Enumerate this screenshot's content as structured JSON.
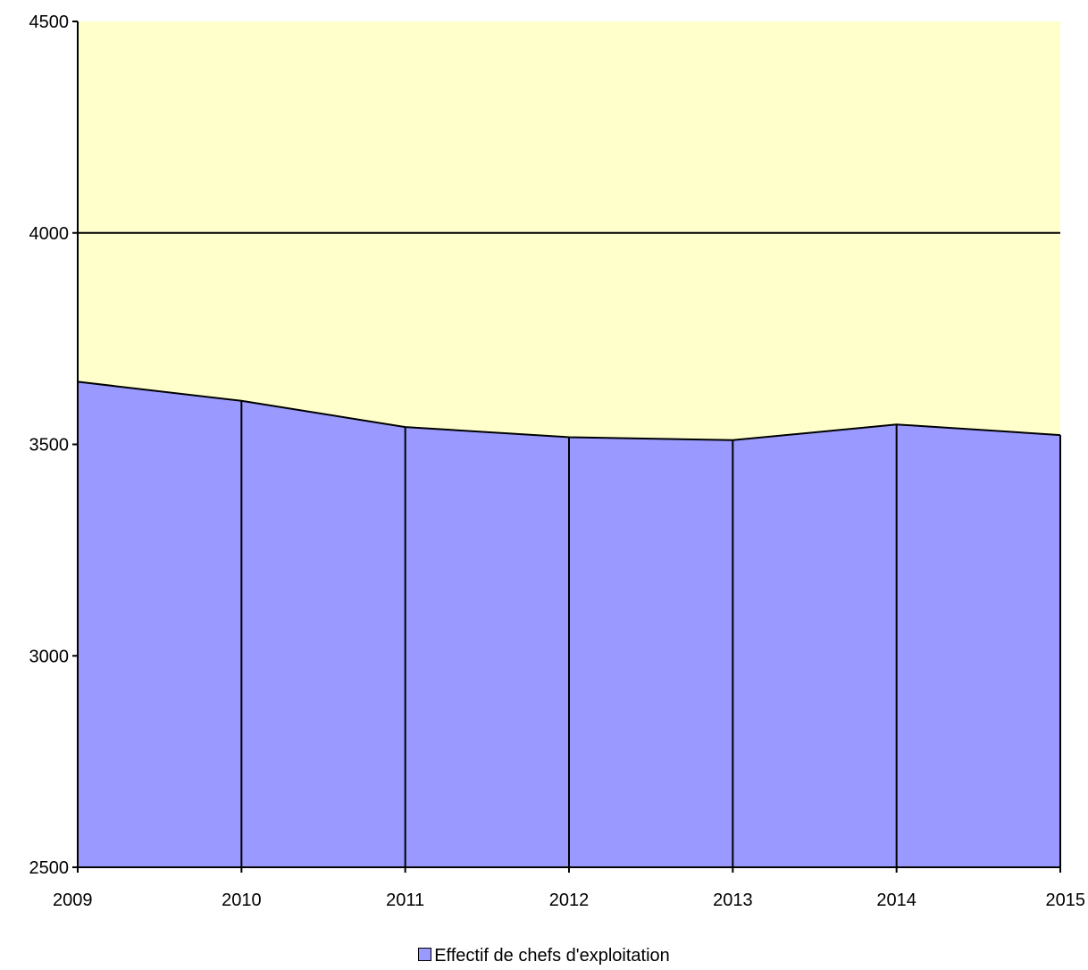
{
  "chart_data": {
    "type": "area",
    "x": [
      "2009",
      "2010",
      "2011",
      "2012",
      "2013",
      "2014",
      "2015"
    ],
    "series": [
      {
        "name": "Effectif de chefs d'exploitation",
        "values": [
          3648,
          3603,
          3541,
          3517,
          3510,
          3547,
          3522
        ],
        "color": "#9999ff"
      }
    ],
    "ylim": [
      2500,
      4500
    ],
    "yticks": [
      "2500",
      "3000",
      "3500",
      "4000",
      "4500"
    ],
    "gridlines_y": [
      4000
    ],
    "plot_background": "#ffffcc",
    "vertical_drop_lines": true,
    "legend_position": "bottom-center",
    "title": "",
    "xlabel": "",
    "ylabel": ""
  }
}
